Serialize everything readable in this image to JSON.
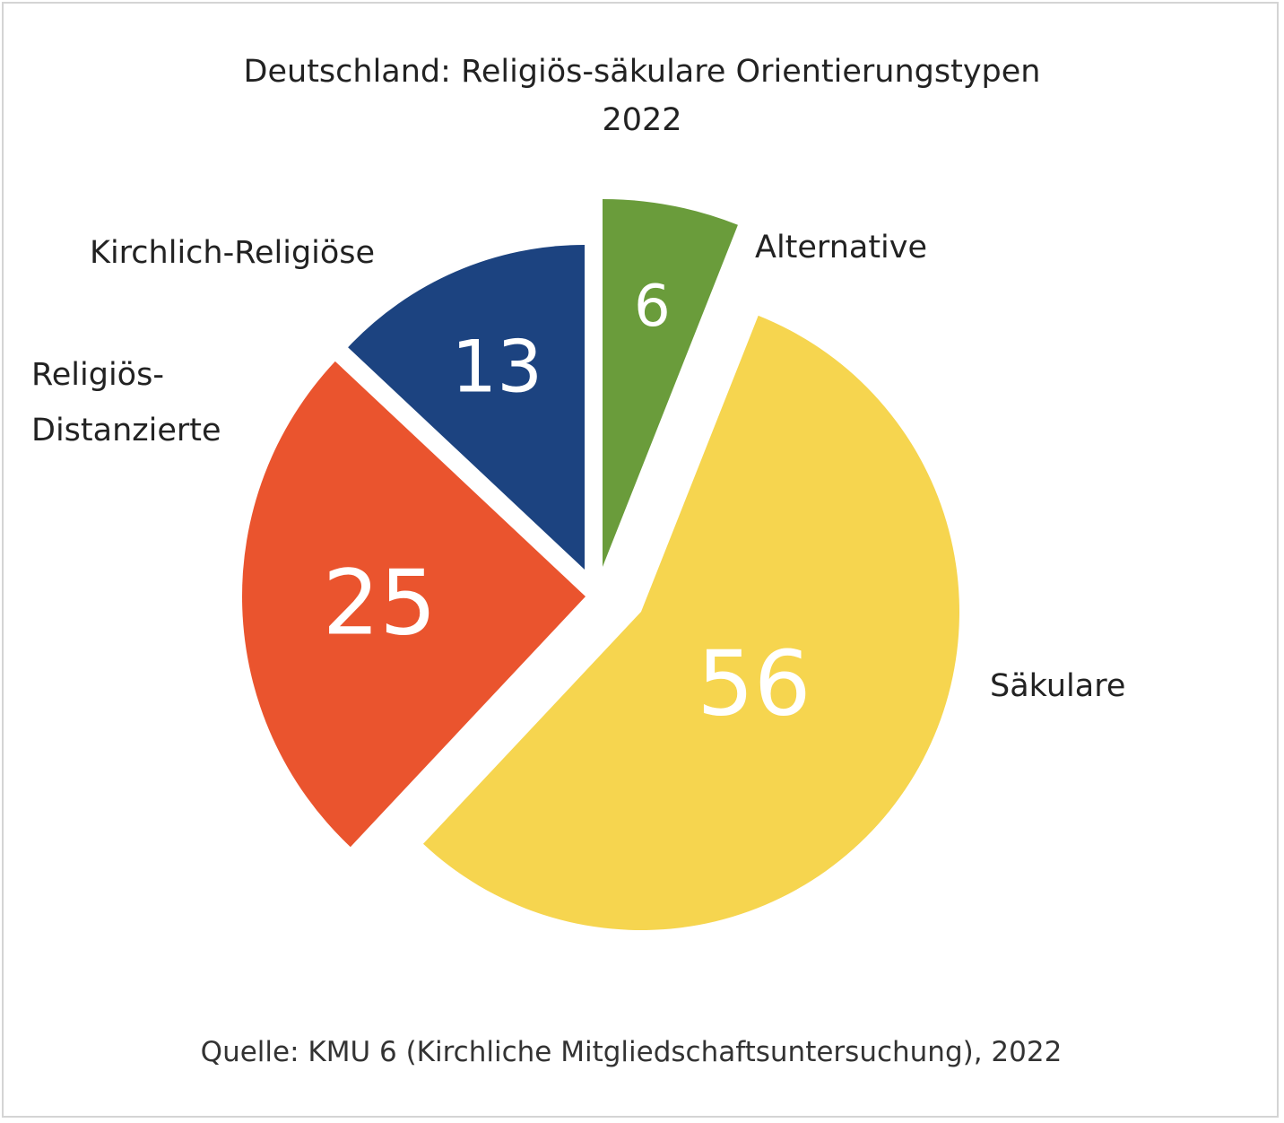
{
  "chart_data": {
    "type": "pie",
    "title": [
      "Deutschland: Religiös-säkulare Orientierungstypen",
      "2022"
    ],
    "source": "Quelle: KMU 6 (Kirchliche Mitgliedschaftsuntersuchung), 2022",
    "slices": [
      {
        "name": "Alternative",
        "label_lines": [
          "Alternative"
        ],
        "value": 6,
        "value_label": "6",
        "color": "#6a9c3b"
      },
      {
        "name": "Säkulare",
        "label_lines": [
          "Säkulare"
        ],
        "value": 56,
        "value_label": "56",
        "color": "#f6d54f"
      },
      {
        "name": "Religiös-Distanzierte",
        "label_lines": [
          "Religiös-",
          "Distanzierte"
        ],
        "value": 25,
        "value_label": "25",
        "color": "#ea542e"
      },
      {
        "name": "Kirchlich-Religiöse",
        "label_lines": [
          "Kirchlich-Religiöse"
        ],
        "value": 13,
        "value_label": "13",
        "color": "#1c4380"
      }
    ]
  }
}
